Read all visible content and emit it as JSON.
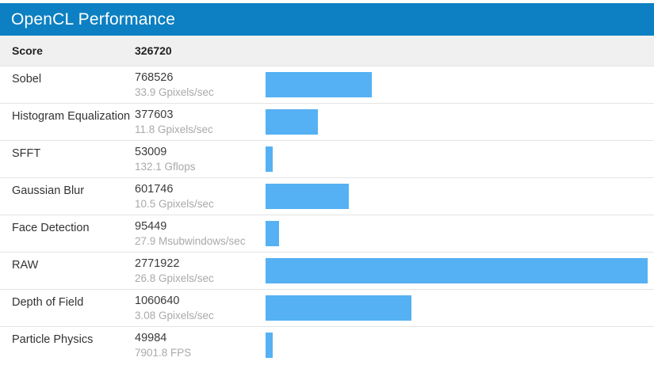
{
  "header": {
    "title": "OpenCL Performance"
  },
  "score_row": {
    "label": "Score",
    "value": "326720"
  },
  "colors": {
    "header_bg": "#0c80c2",
    "header_text": "#ffffff",
    "score_band_bg": "#f0f0f0",
    "bar": "#55b1f3",
    "row_border": "#e4e4e4",
    "name_text": "#333333",
    "value_text": "#3a3a3a",
    "unit_text": "#a9a9a9"
  },
  "chart_data": {
    "type": "bar",
    "title": "OpenCL Performance",
    "orientation": "horizontal",
    "overall_score": 326720,
    "max_value": 2771922,
    "scale_note": "bar width proportional to score; RAW (max) spans full track",
    "categories": [
      "Sobel",
      "Histogram Equalization",
      "SFFT",
      "Gaussian Blur",
      "Face Detection",
      "RAW",
      "Depth of Field",
      "Particle Physics"
    ],
    "values": [
      768526,
      377603,
      53009,
      601746,
      95449,
      2771922,
      1060640,
      49984
    ],
    "rows": [
      {
        "name": "Sobel",
        "score": "768526",
        "rate": "33.9 Gpixels/sec"
      },
      {
        "name": "Histogram Equalization",
        "score": "377603",
        "rate": "11.8 Gpixels/sec"
      },
      {
        "name": "SFFT",
        "score": "53009",
        "rate": "132.1 Gflops"
      },
      {
        "name": "Gaussian Blur",
        "score": "601746",
        "rate": "10.5 Gpixels/sec"
      },
      {
        "name": "Face Detection",
        "score": "95449",
        "rate": "27.9 Msubwindows/sec"
      },
      {
        "name": "RAW",
        "score": "2771922",
        "rate": "26.8 Gpixels/sec"
      },
      {
        "name": "Depth of Field",
        "score": "1060640",
        "rate": "3.08 Gpixels/sec"
      },
      {
        "name": "Particle Physics",
        "score": "49984",
        "rate": "7901.8 FPS"
      }
    ]
  }
}
